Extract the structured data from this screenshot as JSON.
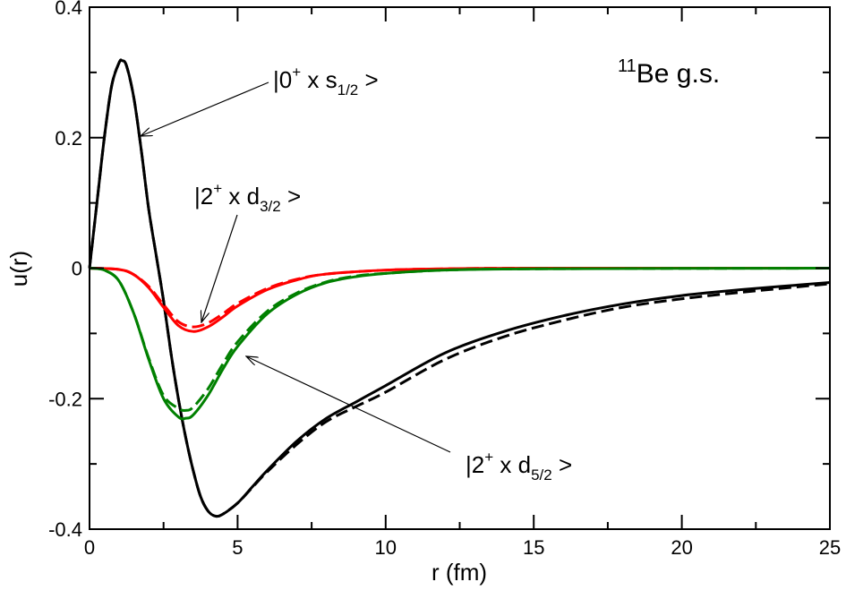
{
  "chart_data": {
    "type": "line",
    "title": "",
    "xlabel": "r (fm)",
    "ylabel": "u(r)",
    "xlim": [
      0,
      25
    ],
    "ylim": [
      -0.4,
      0.4
    ],
    "xticks": [
      0,
      5,
      10,
      15,
      20,
      25
    ],
    "xtick_labels": [
      "0",
      "5",
      "10",
      "15",
      "20",
      "25"
    ],
    "yticks": [
      -0.4,
      -0.2,
      0,
      0.2,
      0.4
    ],
    "ytick_labels": [
      "-0.4",
      "-0.2",
      "0",
      "0.2",
      "0.4"
    ],
    "grid": false,
    "series": [
      {
        "color": "#000000",
        "style": "solid",
        "x": [
          0,
          0.25,
          0.5,
          0.75,
          1.0,
          1.1,
          1.25,
          1.5,
          1.75,
          2.0,
          2.25,
          2.5,
          2.75,
          3.0,
          3.25,
          3.5,
          3.75,
          4.0,
          4.25,
          4.5,
          5,
          5.5,
          6,
          7,
          8,
          9,
          10,
          12,
          14,
          16,
          18,
          20,
          22,
          25
        ],
        "y": [
          0,
          0.1,
          0.2,
          0.28,
          0.315,
          0.318,
          0.31,
          0.26,
          0.18,
          0.09,
          0.02,
          -0.05,
          -0.13,
          -0.2,
          -0.26,
          -0.31,
          -0.35,
          -0.372,
          -0.38,
          -0.377,
          -0.36,
          -0.335,
          -0.31,
          -0.265,
          -0.23,
          -0.205,
          -0.18,
          -0.13,
          -0.097,
          -0.073,
          -0.055,
          -0.042,
          -0.033,
          -0.022
        ]
      },
      {
        "color": "#000000",
        "style": "dashed",
        "x": [
          0,
          0.25,
          0.5,
          0.75,
          1.0,
          1.1,
          1.25,
          1.5,
          1.75,
          2.0,
          2.25,
          2.5,
          2.75,
          3.0,
          3.25,
          3.5,
          3.75,
          4.0,
          4.25,
          4.5,
          5,
          5.5,
          6,
          7,
          8,
          9,
          10,
          12,
          14,
          16,
          18,
          20,
          22,
          25
        ],
        "y": [
          0,
          0.1,
          0.2,
          0.28,
          0.315,
          0.318,
          0.31,
          0.26,
          0.18,
          0.09,
          0.02,
          -0.05,
          -0.13,
          -0.2,
          -0.26,
          -0.31,
          -0.35,
          -0.372,
          -0.38,
          -0.377,
          -0.36,
          -0.336,
          -0.312,
          -0.27,
          -0.235,
          -0.212,
          -0.19,
          -0.14,
          -0.105,
          -0.08,
          -0.06,
          -0.047,
          -0.037,
          -0.024
        ]
      },
      {
        "color": "#ff0000",
        "style": "solid",
        "x": [
          0,
          1,
          1.5,
          2,
          2.5,
          3,
          3.5,
          4,
          4.5,
          5,
          6,
          7,
          8,
          10,
          12,
          15,
          25
        ],
        "y": [
          0,
          -0.002,
          -0.01,
          -0.03,
          -0.06,
          -0.088,
          -0.097,
          -0.09,
          -0.075,
          -0.058,
          -0.033,
          -0.018,
          -0.009,
          -0.003,
          -0.001,
          0,
          0
        ]
      },
      {
        "color": "#ff0000",
        "style": "dashed",
        "x": [
          0,
          1,
          1.5,
          2,
          2.5,
          3,
          3.5,
          4,
          4.5,
          5,
          6,
          7,
          8,
          10,
          12,
          15,
          25
        ],
        "y": [
          0,
          -0.002,
          -0.01,
          -0.028,
          -0.056,
          -0.082,
          -0.09,
          -0.084,
          -0.07,
          -0.054,
          -0.031,
          -0.017,
          -0.009,
          -0.003,
          -0.001,
          0,
          0
        ]
      },
      {
        "color": "#008000",
        "style": "solid",
        "x": [
          0,
          0.5,
          1,
          1.5,
          2,
          2.5,
          3,
          3.25,
          3.5,
          4,
          4.5,
          5,
          6,
          7,
          8,
          9,
          10,
          12,
          15,
          25
        ],
        "y": [
          0,
          -0.003,
          -0.02,
          -0.07,
          -0.14,
          -0.2,
          -0.228,
          -0.23,
          -0.225,
          -0.195,
          -0.155,
          -0.12,
          -0.07,
          -0.04,
          -0.022,
          -0.013,
          -0.008,
          -0.003,
          -0.001,
          0
        ]
      },
      {
        "color": "#008000",
        "style": "dashed",
        "x": [
          0,
          0.5,
          1,
          1.5,
          2,
          2.5,
          3,
          3.25,
          3.5,
          4,
          4.5,
          5,
          6,
          7,
          8,
          9,
          10,
          12,
          15,
          25
        ],
        "y": [
          0,
          -0.003,
          -0.02,
          -0.07,
          -0.138,
          -0.195,
          -0.215,
          -0.218,
          -0.213,
          -0.185,
          -0.147,
          -0.113,
          -0.066,
          -0.038,
          -0.021,
          -0.012,
          -0.008,
          -0.003,
          -0.001,
          0
        ]
      }
    ],
    "annotations": [
      {
        "id": "s12",
        "state": "|0",
        "sup": "+",
        "mid": " x s",
        "sub": "1/2",
        "end": " >"
      },
      {
        "id": "d32",
        "state": "|2",
        "sup": "+",
        "mid": " x d",
        "sub": "3/2",
        "end": " >"
      },
      {
        "id": "d52",
        "state": "|2",
        "sup": "+",
        "mid": " x d",
        "sub": "5/2",
        "end": " >"
      }
    ],
    "label": {
      "mass": "11",
      "text": "Be g.s."
    }
  }
}
